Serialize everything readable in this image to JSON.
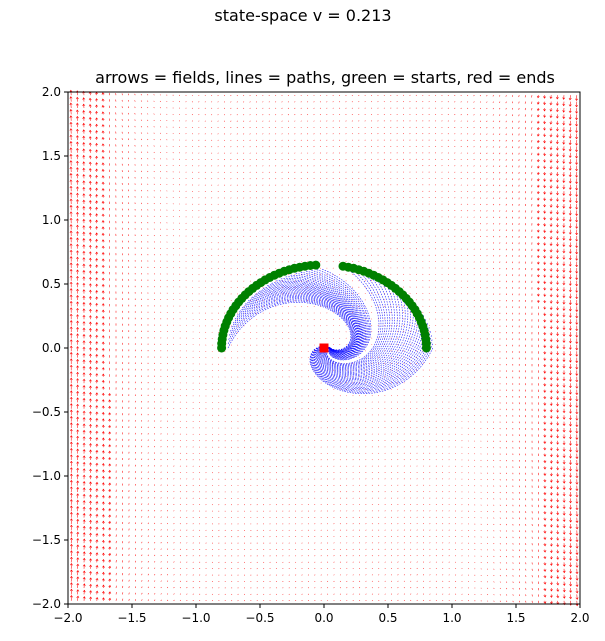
{
  "figure": {
    "suptitle": "state-space v = 0.213"
  },
  "chart_data": {
    "type": "scatter",
    "title": "arrows = fields, lines = paths, green = starts, red = ends",
    "xlabel": "",
    "ylabel": "",
    "xlim": [
      -2.0,
      2.0
    ],
    "ylim": [
      -2.0,
      2.0
    ],
    "x_ticks": [
      "−2.0",
      "−1.5",
      "−1.0",
      "−0.5",
      "0.0",
      "0.5",
      "1.0",
      "1.5",
      "2.0"
    ],
    "y_ticks": [
      "−2.0",
      "−1.5",
      "−1.0",
      "−0.5",
      "0.0",
      "0.5",
      "1.0",
      "1.5",
      "2.0"
    ],
    "grid": false,
    "legend": "none",
    "colors": {
      "arrows": "#ff0000",
      "paths": "#0000ff",
      "starts": "#008000",
      "ends": "#ff0000"
    },
    "field": {
      "grid_n": 80,
      "description_values": "vector field sampled on a regular grid over [-2,2] x [-2,2]; magnitude grows strongly toward |x| = 2"
    },
    "starts": {
      "description_values": "points on the ellipse x = 0.8cos(t), y = 0.65sin(t)",
      "t_range_deg": [
        0,
        180
      ],
      "rx": 0.8,
      "ry": 0.65,
      "gap_deg": [
        80,
        94
      ],
      "count": 60
    },
    "ends": {
      "x": [
        0.0
      ],
      "y": [
        0.0
      ]
    }
  }
}
